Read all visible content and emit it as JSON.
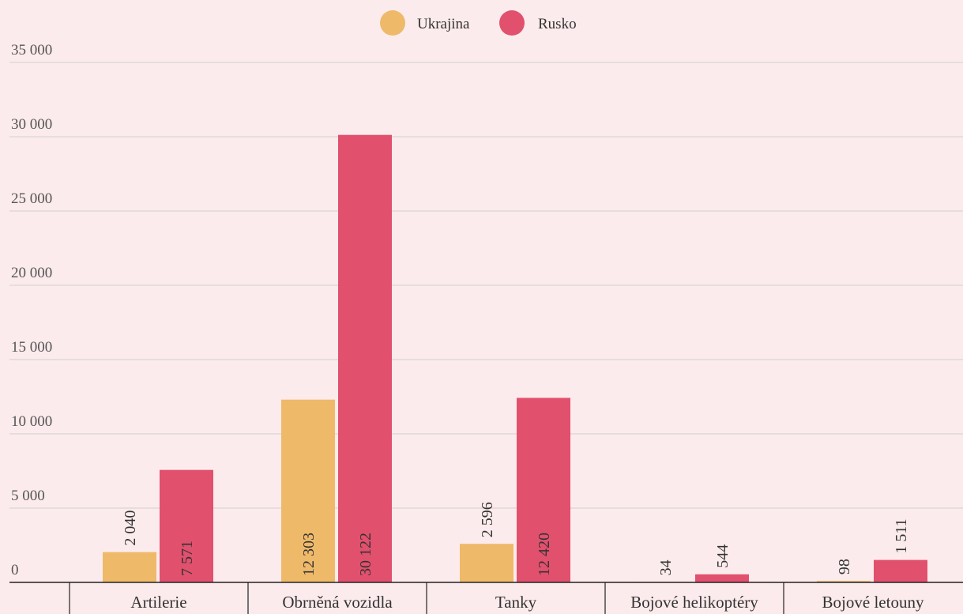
{
  "chart_data": {
    "type": "bar",
    "title": "",
    "xlabel": "",
    "ylabel": "",
    "legend_position": "top-center",
    "grid": true,
    "ylim": [
      0,
      35000
    ],
    "yticks": [
      0,
      5000,
      10000,
      15000,
      20000,
      25000,
      30000,
      35000
    ],
    "ytick_labels": [
      "0",
      "5 000",
      "10 000",
      "15 000",
      "20 000",
      "25 000",
      "30 000",
      "35 000"
    ],
    "categories": [
      "Artilerie",
      "Obrněná vozidla",
      "Tanky",
      "Bojové helikoptéry",
      "Bojové letouny"
    ],
    "series": [
      {
        "name": "Ukrajina",
        "color": "#efb96a",
        "values": [
          2040,
          12303,
          2596,
          34,
          98
        ],
        "labels": [
          "2 040",
          "12 303",
          "2 596",
          "34",
          "98"
        ]
      },
      {
        "name": "Rusko",
        "color": "#e1506d",
        "values": [
          7571,
          30122,
          12420,
          544,
          1511
        ],
        "labels": [
          "7 571",
          "30 122",
          "12 420",
          "544",
          "1 511"
        ]
      }
    ]
  }
}
